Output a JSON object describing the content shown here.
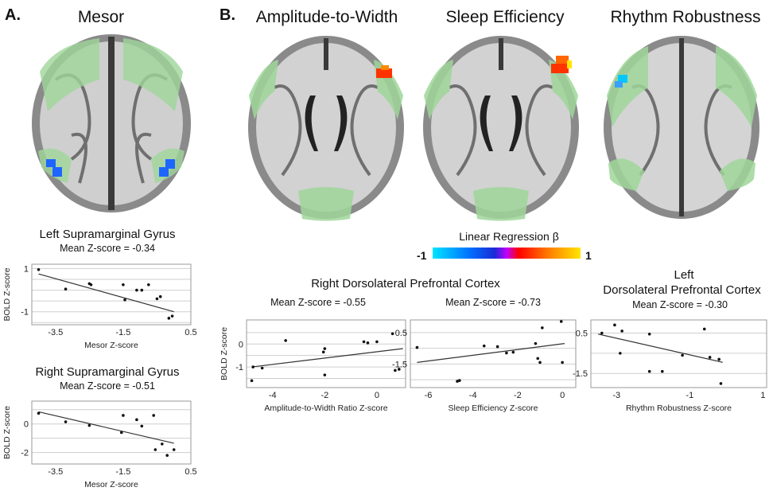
{
  "panels": {
    "a_label": "A.",
    "b_label": "B."
  },
  "brains": [
    {
      "title": "Mesor"
    },
    {
      "title": "Amplitude-to-Width"
    },
    {
      "title": "Sleep Efficiency"
    },
    {
      "title": "Rhythm Robustness"
    }
  ],
  "legend": {
    "title": "Linear Regression β",
    "min_label": "-1",
    "max_label": "1",
    "colors": [
      "#00e5ff",
      "#0070ff",
      "#1a2bd6",
      "#c000ff",
      "#ff0000",
      "#ff7a00",
      "#ffe600"
    ]
  },
  "region_group_b": "Right Dorsolateral Prefrontal Cortex",
  "region_group_c": {
    "line1": "Left",
    "line2": "Dorsolateral Prefrontal Cortex"
  },
  "chart_data": [
    {
      "type": "scatter",
      "title": "Left Supramarginal Gyrus",
      "subtitle": "Mean Z-score = -0.34",
      "xlabel": "Mesor Z-score",
      "ylabel": "BOLD Z-score",
      "xlim": [
        -4.2,
        0.5
      ],
      "ylim": [
        -1.6,
        1.2
      ],
      "xticks": [
        -3.5,
        -1.5,
        0.5
      ],
      "xtick_labels": [
        "-3.5",
        "-1.5",
        "0.5"
      ],
      "yticks": [
        1,
        -1
      ],
      "ytick_labels": [
        "1",
        "-1"
      ],
      "grid_y": [
        1,
        0.5,
        0,
        -0.5,
        -1,
        -1.5
      ],
      "x": [
        -4.0,
        -3.2,
        -2.5,
        -2.45,
        -1.5,
        -1.45,
        -1.1,
        -0.95,
        -0.75,
        -0.5,
        -0.4,
        -0.15,
        -0.05
      ],
      "y": [
        0.95,
        0.05,
        0.3,
        0.25,
        0.25,
        -0.45,
        0.0,
        0.0,
        0.25,
        -0.4,
        -0.3,
        -1.3,
        -1.2
      ],
      "trend": [
        [
          -4.0,
          0.75
        ],
        [
          0.0,
          -1.0
        ]
      ]
    },
    {
      "type": "scatter",
      "title": "Right Supramarginal Gyrus",
      "subtitle": "Mean Z-score = -0.51",
      "xlabel": "Mesor Z-score",
      "ylabel": "BOLD Z-score",
      "xlim": [
        -4.2,
        0.5
      ],
      "ylim": [
        -2.8,
        1.6
      ],
      "xticks": [
        -3.5,
        -1.5,
        0.5
      ],
      "xtick_labels": [
        "-3.5",
        "-1.5",
        "0.5"
      ],
      "yticks": [
        0,
        -2
      ],
      "ytick_labels": [
        "0",
        "-2"
      ],
      "grid_y": [
        1,
        0,
        -1,
        -2
      ],
      "x": [
        -4.0,
        -3.2,
        -2.5,
        -1.5,
        -1.55,
        -1.1,
        -0.95,
        -0.6,
        -0.55,
        -0.35,
        -0.2,
        0.0
      ],
      "y": [
        0.75,
        0.15,
        -0.1,
        0.6,
        -0.6,
        0.3,
        -0.15,
        0.6,
        -1.8,
        -1.4,
        -2.2,
        -1.8
      ],
      "trend": [
        [
          -4.0,
          0.85
        ],
        [
          0.0,
          -1.35
        ]
      ]
    },
    {
      "type": "scatter",
      "title": "Right Dorsolateral Prefrontal Cortex",
      "subtitle": "Mean Z-score = -0.55",
      "xlabel": "Amplitude-to-Width Ratio Z-score",
      "ylabel": "BOLD Z-score",
      "xlim": [
        -5.0,
        1.1
      ],
      "ylim": [
        -1.9,
        1.05
      ],
      "xticks": [
        -4,
        -2,
        0
      ],
      "xtick_labels": [
        "-4",
        "-2",
        "0"
      ],
      "yticks": [
        0,
        -1
      ],
      "ytick_labels": [
        "0",
        "-1"
      ],
      "grid_y": [
        0.5,
        0,
        -0.5,
        -1,
        -1.5
      ],
      "x": [
        -4.8,
        -4.75,
        -4.4,
        -3.5,
        -2.0,
        -2.05,
        -2.0,
        -0.5,
        -0.35,
        0.0,
        0.6,
        0.7,
        0.85
      ],
      "y": [
        -1.6,
        -1.0,
        -1.05,
        0.15,
        -0.2,
        -0.35,
        -1.35,
        0.1,
        0.05,
        0.1,
        0.45,
        -1.15,
        -1.1
      ],
      "trend": [
        [
          -4.8,
          -1.0
        ],
        [
          1.0,
          -0.2
        ]
      ]
    },
    {
      "type": "scatter",
      "title": "",
      "subtitle": "Mean Z-score = -0.73",
      "xlabel": "Sleep Efficiency Z-score",
      "ylabel": "",
      "xlim": [
        -6.8,
        0.6
      ],
      "ylim": [
        -3.0,
        1.3
      ],
      "xticks": [
        -6,
        -4,
        -2,
        0
      ],
      "xtick_labels": [
        "-6",
        "-4",
        "-2",
        "0"
      ],
      "yticks": [
        0.5,
        -1.5
      ],
      "ytick_labels": [
        "0.5",
        "-1.5"
      ],
      "grid_y": [
        0.5,
        -0.5,
        -1.5,
        -2.5
      ],
      "x": [
        -6.5,
        -4.7,
        -4.6,
        -3.5,
        -2.9,
        -2.5,
        -2.2,
        -1.2,
        -1.1,
        -1.0,
        -0.9,
        0.0,
        -0.05
      ],
      "y": [
        -0.45,
        -2.6,
        -2.55,
        -0.35,
        -0.4,
        -0.8,
        -0.75,
        -0.2,
        -1.15,
        -1.4,
        0.8,
        -1.4,
        1.2
      ],
      "trend": [
        [
          -6.5,
          -1.4
        ],
        [
          0.1,
          -0.2
        ]
      ]
    },
    {
      "type": "scatter",
      "title": "",
      "subtitle": "Mean Z-score = -0.30",
      "xlabel": "Rhythm Robustness Z-score",
      "ylabel": "",
      "xlim": [
        -3.7,
        1.1
      ],
      "ylim": [
        -2.2,
        1.15
      ],
      "xticks": [
        -3,
        -1,
        1
      ],
      "xtick_labels": [
        "-3",
        "-1",
        "1"
      ],
      "yticks": [
        0.5,
        -1.5
      ],
      "ytick_labels": [
        "0.5",
        "-1.5"
      ],
      "grid_y": [
        0.5,
        -0.5,
        -1.5
      ],
      "x": [
        -3.4,
        -3.05,
        -2.85,
        -2.9,
        -2.1,
        -2.1,
        -1.75,
        -1.2,
        -0.6,
        -0.45,
        -0.2,
        -0.15
      ],
      "y": [
        0.5,
        0.9,
        0.6,
        -0.5,
        -1.4,
        0.45,
        -1.4,
        -0.6,
        0.7,
        -0.7,
        -0.8,
        -2.0
      ],
      "trend": [
        [
          -3.5,
          0.45
        ],
        [
          -0.1,
          -0.95
        ]
      ]
    }
  ]
}
